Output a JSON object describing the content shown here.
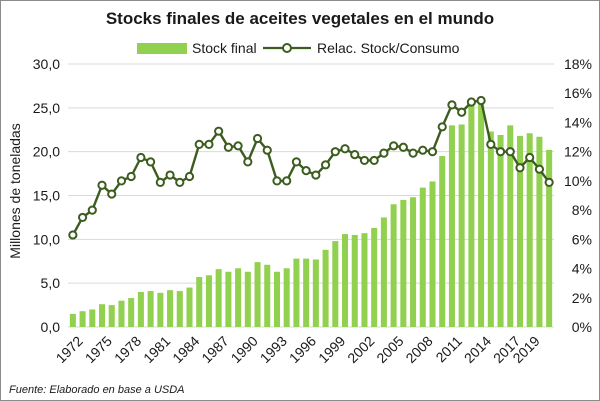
{
  "chart_data": {
    "type": "bar",
    "title": "Stocks finales de aceites vegetales en el mundo",
    "ylabel": "Millones de toneladas",
    "source": "Fuente: Elaborado en base a USDA",
    "x": [
      1972,
      1973,
      1974,
      1975,
      1976,
      1977,
      1978,
      1979,
      1980,
      1981,
      1982,
      1983,
      1984,
      1985,
      1986,
      1987,
      1988,
      1989,
      1990,
      1991,
      1992,
      1993,
      1994,
      1995,
      1996,
      1997,
      1998,
      1999,
      2000,
      2001,
      2002,
      2003,
      2004,
      2005,
      2006,
      2007,
      2008,
      2009,
      2010,
      2011,
      2012,
      2013,
      2014,
      2015,
      2016,
      2017,
      2018,
      2019,
      2020,
      2021
    ],
    "x_tick_labels": [
      "1972",
      "1975",
      "1978",
      "1981",
      "1984",
      "1987",
      "1990",
      "1993",
      "1996",
      "1999",
      "2002",
      "2005",
      "2008",
      "2011",
      "2014",
      "2017",
      "2019"
    ],
    "y_left": {
      "ylim": [
        0,
        30
      ],
      "ticks": [
        "0,0",
        "5,0",
        "10,0",
        "15,0",
        "20,0",
        "25,0",
        "30,0"
      ]
    },
    "y_right": {
      "ylim": [
        0,
        18
      ],
      "ticks": [
        "0%",
        "2%",
        "4%",
        "6%",
        "8%",
        "10%",
        "12%",
        "14%",
        "16%",
        "18%"
      ]
    },
    "grid": true,
    "legend_position": "top",
    "colors": {
      "bars": "#92d050",
      "line": "#3d5c1f",
      "marker_fill": "#ffffff",
      "grid": "#d9d9d9"
    },
    "series": [
      {
        "name": "Stock final",
        "type": "bar",
        "axis": "left",
        "values": [
          1.5,
          1.8,
          2.0,
          2.6,
          2.5,
          3.0,
          3.3,
          4.0,
          4.1,
          3.9,
          4.2,
          4.1,
          4.5,
          5.7,
          5.9,
          6.6,
          6.3,
          6.7,
          6.3,
          7.4,
          7.1,
          6.3,
          6.7,
          7.8,
          7.8,
          7.7,
          8.8,
          9.8,
          10.6,
          10.5,
          10.7,
          11.3,
          12.5,
          14.0,
          14.5,
          14.8,
          15.9,
          16.6,
          19.5,
          23.0,
          23.1,
          25.3,
          25.7,
          22.3,
          21.9,
          23.0,
          21.8,
          22.1,
          21.7,
          20.2
        ]
      },
      {
        "name": "Relac. Stock/Consumo",
        "type": "line",
        "axis": "right",
        "values": [
          6.3,
          7.5,
          8.0,
          9.7,
          9.1,
          10.0,
          10.3,
          11.6,
          11.3,
          9.9,
          10.4,
          9.9,
          10.3,
          12.5,
          12.5,
          13.4,
          12.3,
          12.4,
          11.3,
          12.9,
          12.1,
          10.0,
          10.0,
          11.3,
          10.7,
          10.4,
          11.1,
          12.0,
          12.2,
          11.8,
          11.4,
          11.4,
          11.9,
          12.4,
          12.3,
          11.9,
          12.1,
          12.0,
          13.7,
          15.2,
          14.7,
          15.4,
          15.5,
          12.5,
          12.0,
          12.0,
          10.9,
          11.6,
          10.8,
          9.9
        ]
      }
    ]
  }
}
